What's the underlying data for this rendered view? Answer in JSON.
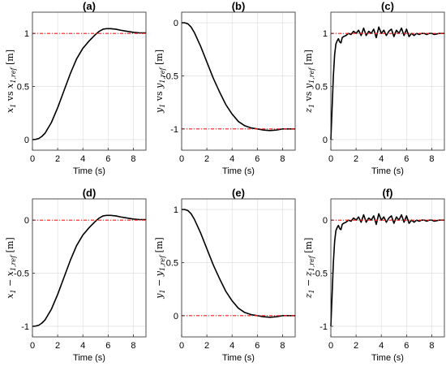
{
  "chart_data": [
    {
      "panel": "a",
      "type": "line",
      "title": "(a)",
      "xlabel": "Time (s)",
      "ylabel": "x1 vs x1,ref [m]",
      "ylabel_parts": {
        "v1": "x",
        "s1": "1",
        "mid": " vs ",
        "v2": "x",
        "s2": "1,ref",
        "unit": " [m]"
      },
      "xlim": [
        0,
        9
      ],
      "ylim": [
        -0.1,
        1.2
      ],
      "xticks": [
        0,
        2,
        4,
        6,
        8
      ],
      "xtick_labels": [
        "0",
        "2",
        "4",
        "6",
        "8"
      ],
      "yticks": [
        0,
        0.5,
        1
      ],
      "ytick_labels": [
        "0",
        "0.5",
        "1"
      ],
      "grid": true,
      "series": [
        {
          "x": [
            0,
            0.25,
            0.5,
            0.75,
            1,
            1.5,
            2,
            2.5,
            3,
            3.5,
            4,
            4.5,
            5,
            5.3,
            5.6,
            5.9,
            6.2,
            6.6,
            7,
            7.5,
            8,
            8.5,
            9
          ],
          "y": [
            0,
            0.002,
            0.01,
            0.03,
            0.06,
            0.16,
            0.3,
            0.46,
            0.62,
            0.76,
            0.86,
            0.93,
            0.99,
            1.02,
            1.04,
            1.045,
            1.045,
            1.04,
            1.03,
            1.02,
            1.01,
            1.005,
            1.005
          ]
        },
        {
          "x": [
            0,
            9
          ],
          "y": [
            1,
            1
          ],
          "reference": true
        }
      ]
    },
    {
      "panel": "b",
      "type": "line",
      "title": "(b)",
      "xlabel": "Time (s)",
      "ylabel": "y1 vs y1,ref [m]",
      "ylabel_parts": {
        "v1": "y",
        "s1": "1",
        "mid": " vs ",
        "v2": "y",
        "s2": "1,ref",
        "unit": " [m]"
      },
      "xlim": [
        0,
        9
      ],
      "ylim": [
        -1.2,
        0.1
      ],
      "xticks": [
        0,
        2,
        4,
        6,
        8
      ],
      "xtick_labels": [
        "0",
        "2",
        "4",
        "6",
        "8"
      ],
      "yticks": [
        -1,
        -0.5,
        0
      ],
      "ytick_labels": [
        "-1",
        "-0.5",
        "0"
      ],
      "grid": true,
      "series": [
        {
          "x": [
            0,
            0.25,
            0.5,
            0.75,
            1,
            1.5,
            2,
            2.5,
            3,
            3.5,
            4,
            4.5,
            5,
            5.5,
            6,
            6.5,
            7,
            7.5,
            8,
            8.5,
            9
          ],
          "y": [
            0,
            0,
            -0.01,
            -0.04,
            -0.09,
            -0.22,
            -0.37,
            -0.52,
            -0.65,
            -0.77,
            -0.86,
            -0.93,
            -0.97,
            -0.99,
            -1.0,
            -1.01,
            -1.015,
            -1.01,
            -1.0,
            -1.0,
            -1.0
          ]
        },
        {
          "x": [
            0,
            9
          ],
          "y": [
            -1,
            -1
          ],
          "reference": true
        }
      ]
    },
    {
      "panel": "c",
      "type": "line",
      "title": "(c)",
      "xlabel": "Time (s)",
      "ylabel": "z1 vs y1,ref [m]",
      "ylabel_parts": {
        "v1": "z",
        "s1": "1",
        "mid": " vs ",
        "v2": "y",
        "s2": "1,ref",
        "unit": " [m]"
      },
      "xlim": [
        0,
        9
      ],
      "ylim": [
        -0.1,
        1.2
      ],
      "xticks": [
        0,
        2,
        4,
        6,
        8
      ],
      "xtick_labels": [
        "0",
        "2",
        "4",
        "6",
        "8"
      ],
      "yticks": [
        0,
        0.5,
        1
      ],
      "ytick_labels": [
        "0",
        "0.5",
        "1"
      ],
      "grid": true,
      "series": [
        {
          "x": [
            0,
            0.1,
            0.2,
            0.3,
            0.4,
            0.5,
            0.6,
            0.7,
            0.8,
            0.9,
            1.0,
            1.2,
            1.4,
            1.6,
            1.8,
            2.0,
            2.2,
            2.4,
            2.6,
            2.8,
            3.0,
            3.2,
            3.4,
            3.6,
            3.8,
            4.0,
            4.2,
            4.4,
            4.6,
            4.8,
            5.0,
            5.2,
            5.4,
            5.6,
            5.8,
            6.0,
            6.2,
            6.4,
            6.6,
            6.8,
            7.0,
            7.2,
            7.4,
            7.6,
            7.8,
            8.0,
            8.2,
            8.4,
            8.6,
            8.8,
            9.0
          ],
          "y": [
            0,
            0.3,
            0.6,
            0.8,
            0.9,
            0.93,
            0.95,
            0.92,
            0.91,
            0.96,
            0.97,
            0.98,
            1.0,
            0.99,
            1.02,
            1.0,
            1.03,
            0.98,
            1.05,
            0.98,
            1.02,
            1.0,
            1.04,
            0.96,
            1.06,
            1.0,
            1.03,
            0.98,
            1.02,
            1.04,
            0.97,
            1.03,
            1.0,
            1.05,
            0.98,
            1.04,
            0.97,
            1.0,
            0.98,
            1.0,
            0.99,
            1.0,
            1.0,
            0.99,
            1.0,
            1.0,
            0.99,
            0.995,
            1.0,
            1.0,
            1.0
          ]
        },
        {
          "x": [
            0,
            9
          ],
          "y": [
            1,
            1
          ],
          "reference": true
        }
      ]
    },
    {
      "panel": "d",
      "type": "line",
      "title": "(d)",
      "xlabel": "Time (s)",
      "ylabel": "x1 − x1,ref [m]",
      "ylabel_parts": {
        "v1": "x",
        "s1": "1",
        "mid": " − ",
        "v2": "x",
        "s2": "1,ref",
        "unit": " [m]"
      },
      "xlim": [
        0,
        9
      ],
      "ylim": [
        -1.1,
        0.2
      ],
      "xticks": [
        0,
        2,
        4,
        6,
        8
      ],
      "xtick_labels": [
        "0",
        "2",
        "4",
        "6",
        "8"
      ],
      "yticks": [
        -1,
        -0.5,
        0
      ],
      "ytick_labels": [
        "-1",
        "-0.5",
        "0"
      ],
      "grid": true,
      "series": [
        {
          "x": [
            0,
            0.25,
            0.5,
            0.75,
            1,
            1.5,
            2,
            2.5,
            3,
            3.5,
            4,
            4.5,
            5,
            5.3,
            5.6,
            5.9,
            6.2,
            6.6,
            7,
            7.5,
            8,
            8.5,
            9
          ],
          "y": [
            -1,
            -0.998,
            -0.99,
            -0.97,
            -0.94,
            -0.84,
            -0.7,
            -0.54,
            -0.38,
            -0.24,
            -0.14,
            -0.07,
            -0.01,
            0.02,
            0.04,
            0.045,
            0.045,
            0.04,
            0.03,
            0.02,
            0.01,
            0.005,
            0.005
          ]
        },
        {
          "x": [
            0,
            9
          ],
          "y": [
            0,
            0
          ],
          "reference": true
        }
      ]
    },
    {
      "panel": "e",
      "type": "line",
      "title": "(e)",
      "xlabel": "Time (s)",
      "ylabel": "y1 − y1,ref [m]",
      "ylabel_parts": {
        "v1": "y",
        "s1": "1",
        "mid": " − ",
        "v2": "y",
        "s2": "1,ref",
        "unit": " [m]"
      },
      "xlim": [
        0,
        9
      ],
      "ylim": [
        -0.2,
        1.1
      ],
      "xticks": [
        0,
        2,
        4,
        6,
        8
      ],
      "xtick_labels": [
        "0",
        "2",
        "4",
        "6",
        "8"
      ],
      "yticks": [
        0,
        0.5,
        1
      ],
      "ytick_labels": [
        "0",
        "0.5",
        "1"
      ],
      "grid": true,
      "series": [
        {
          "x": [
            0,
            0.25,
            0.5,
            0.75,
            1,
            1.5,
            2,
            2.5,
            3,
            3.5,
            4,
            4.5,
            5,
            5.5,
            6,
            6.5,
            7,
            7.5,
            8,
            8.5,
            9
          ],
          "y": [
            1,
            1,
            0.99,
            0.96,
            0.91,
            0.78,
            0.63,
            0.48,
            0.35,
            0.23,
            0.14,
            0.07,
            0.03,
            0.01,
            0.0,
            -0.01,
            -0.015,
            -0.01,
            0.0,
            0.0,
            0.0
          ]
        },
        {
          "x": [
            0,
            9
          ],
          "y": [
            0,
            0
          ],
          "reference": true
        }
      ]
    },
    {
      "panel": "f",
      "type": "line",
      "title": "(f)",
      "xlabel": "Time (s)",
      "ylabel": "z1 − z1,ref [m]",
      "ylabel_parts": {
        "v1": "z",
        "s1": "1",
        "mid": " − ",
        "v2": "z",
        "s2": "1,ref",
        "unit": " [m]"
      },
      "xlim": [
        0,
        9
      ],
      "ylim": [
        -1.1,
        0.2
      ],
      "xticks": [
        0,
        2,
        4,
        6,
        8
      ],
      "xtick_labels": [
        "0",
        "2",
        "4",
        "6",
        "8"
      ],
      "yticks": [
        -1,
        -0.5,
        0
      ],
      "ytick_labels": [
        "-1",
        "-0.5",
        "0"
      ],
      "grid": true,
      "series": [
        {
          "x": [
            0,
            0.1,
            0.2,
            0.3,
            0.4,
            0.5,
            0.6,
            0.7,
            0.8,
            0.9,
            1.0,
            1.2,
            1.4,
            1.6,
            1.8,
            2.0,
            2.2,
            2.4,
            2.6,
            2.8,
            3.0,
            3.2,
            3.4,
            3.6,
            3.8,
            4.0,
            4.2,
            4.4,
            4.6,
            4.8,
            5.0,
            5.2,
            5.4,
            5.6,
            5.8,
            6.0,
            6.2,
            6.4,
            6.6,
            6.8,
            7.0,
            7.2,
            7.4,
            7.6,
            7.8,
            8.0,
            8.2,
            8.4,
            8.6,
            8.8,
            9.0
          ],
          "y": [
            -1,
            -0.7,
            -0.4,
            -0.2,
            -0.1,
            -0.07,
            -0.05,
            -0.08,
            -0.09,
            -0.04,
            -0.03,
            -0.02,
            0.0,
            -0.01,
            0.02,
            0.0,
            0.03,
            -0.02,
            0.05,
            -0.02,
            0.02,
            0.0,
            0.04,
            -0.04,
            0.06,
            0.0,
            0.03,
            -0.02,
            0.02,
            0.04,
            -0.03,
            0.03,
            0.0,
            0.05,
            -0.02,
            0.04,
            -0.03,
            0.0,
            -0.02,
            0.0,
            -0.01,
            0.0,
            0.0,
            -0.01,
            0.0,
            0.0,
            -0.01,
            -0.005,
            0.0,
            0.0,
            0.0
          ]
        },
        {
          "x": [
            0,
            9
          ],
          "y": [
            0,
            0
          ],
          "reference": true
        }
      ]
    }
  ]
}
